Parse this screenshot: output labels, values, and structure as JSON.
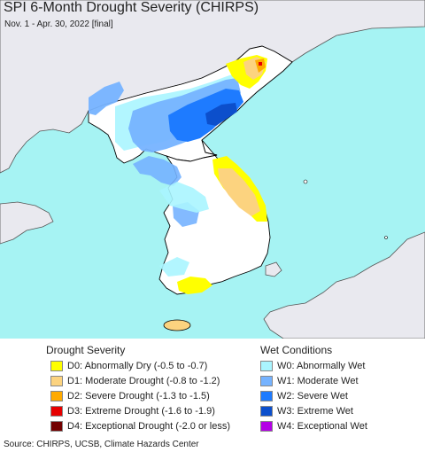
{
  "header": {
    "title": "SPI 6-Month Drought Severity (CHIRPS)",
    "subtitle": "Nov. 1 - Apr. 30, 2022 [final]"
  },
  "colors": {
    "sea": "#a6f3f3",
    "land_outside": "#e9e9ef",
    "land_in_region": "#ffffff",
    "borders": "#000000"
  },
  "legend": {
    "drought_heading": "Drought Severity",
    "wet_heading": "Wet Conditions",
    "drought_items": [
      {
        "code": "D0",
        "label": "D0: Abnormally Dry (-0.5 to -0.7)",
        "color": "#ffff00"
      },
      {
        "code": "D1",
        "label": "D1: Moderate Drought (-0.8 to -1.2)",
        "color": "#fcd37f"
      },
      {
        "code": "D2",
        "label": "D2: Severe Drought (-1.3 to -1.5)",
        "color": "#ffaa00"
      },
      {
        "code": "D3",
        "label": "D3: Extreme Drought (-1.6 to -1.9)",
        "color": "#e60000"
      },
      {
        "code": "D4",
        "label": "D4: Exceptional Drought (-2.0 or less)",
        "color": "#730000"
      }
    ],
    "wet_items": [
      {
        "code": "W0",
        "label": "W0: Abnormally Wet",
        "color": "#aaf5ff"
      },
      {
        "code": "W1",
        "label": "W1: Moderate Wet",
        "color": "#76b3ff"
      },
      {
        "code": "W2",
        "label": "W2: Severe Wet",
        "color": "#1e7bff"
      },
      {
        "code": "W3",
        "label": "W3: Extreme Wet",
        "color": "#0c4fcc"
      },
      {
        "code": "W4",
        "label": "W4: Exceptional Wet",
        "color": "#b400e6"
      }
    ]
  },
  "footer": {
    "source": "Source: CHIRPS, UCSB, Climate Hazards Center"
  }
}
